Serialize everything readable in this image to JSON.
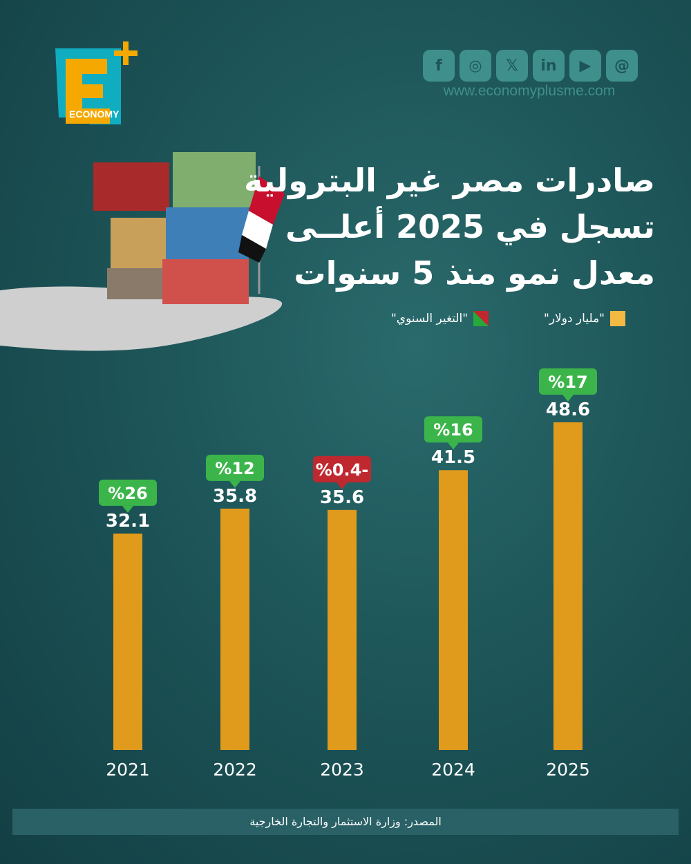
{
  "logo": {
    "text": "ECONOMY",
    "colors": {
      "e": "#f5a800",
      "back": "#10adc0",
      "plus": "#f5a800"
    }
  },
  "social": {
    "icons": [
      "facebook-icon",
      "instagram-icon",
      "x-icon",
      "linkedin-icon",
      "youtube-icon",
      "threads-icon"
    ],
    "glyphs": [
      "f",
      "◎",
      "𝕏",
      "in",
      "▶",
      "@"
    ],
    "url": "www.economyplusme.com"
  },
  "title": [
    "صادرات مصر غير البترولية",
    "تسجل في 2025 أعلــى",
    "معدل نمو منذ 5 سنوات"
  ],
  "legend": {
    "value_label": "\"مليار دولار\"",
    "change_label": "\"التغير السنوي\""
  },
  "colors": {
    "bar": "#e09a1c",
    "positive": "#3bb54a",
    "negative": "#c0282f"
  },
  "chart_data": {
    "type": "bar",
    "categories": [
      "2021",
      "2022",
      "2023",
      "2024",
      "2025"
    ],
    "series": [
      {
        "name": "\"مليار دولار\"",
        "values": [
          32.1,
          35.8,
          35.6,
          41.5,
          48.6
        ]
      }
    ],
    "annual_change": {
      "name": "\"التغير السنوي\"",
      "values": [
        26,
        12,
        -0.4,
        16,
        17
      ],
      "labels": [
        "%26",
        "%12",
        "%0.4-",
        "%16",
        "%17"
      ]
    },
    "ylim": [
      0,
      50
    ],
    "grid": false,
    "legend": "top-right"
  },
  "source": "المصدر: وزارة الاستثمار والتجارة الخارجية"
}
